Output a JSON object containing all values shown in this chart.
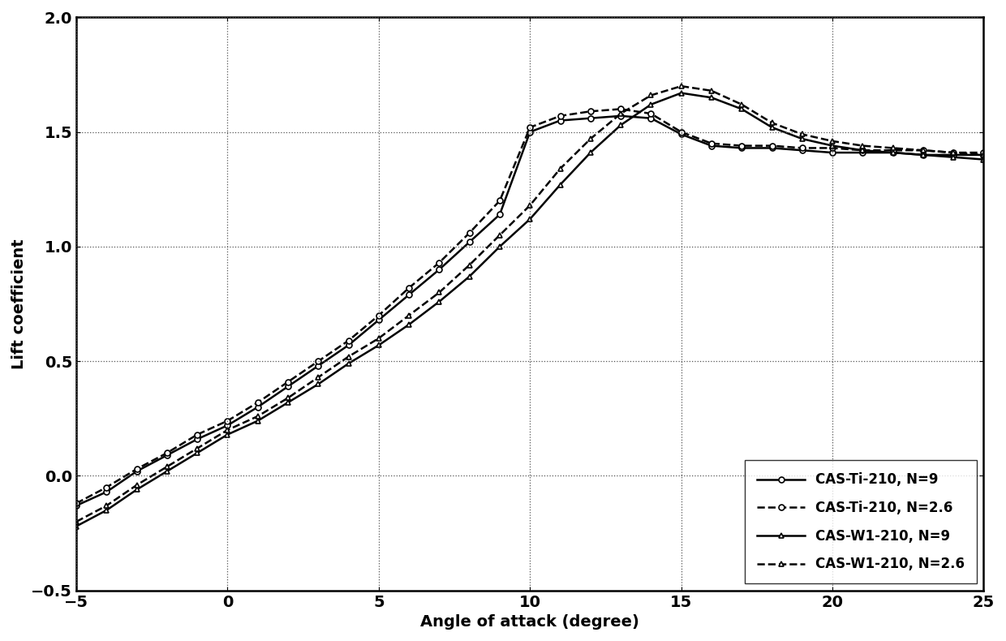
{
  "title": "",
  "xlabel": "Angle of attack (degree)",
  "ylabel": "Lift coefficient",
  "xlim": [
    -5,
    25
  ],
  "ylim": [
    -0.5,
    2.0
  ],
  "xticks": [
    -5,
    0,
    5,
    10,
    15,
    20,
    25
  ],
  "yticks": [
    -0.5,
    0.0,
    0.5,
    1.0,
    1.5,
    2.0
  ],
  "series": [
    {
      "label": "CAS-Ti-210, N=9",
      "linestyle": "-",
      "marker": "o",
      "color": "#000000",
      "x": [
        -5,
        -4,
        -3,
        -2,
        -1,
        0,
        1,
        2,
        3,
        4,
        5,
        6,
        7,
        8,
        9,
        10,
        11,
        12,
        13,
        14,
        15,
        16,
        17,
        18,
        19,
        20,
        21,
        22,
        23,
        24,
        25
      ],
      "y": [
        -0.13,
        -0.07,
        0.02,
        0.09,
        0.16,
        0.22,
        0.3,
        0.39,
        0.48,
        0.57,
        0.68,
        0.79,
        0.9,
        1.02,
        1.14,
        1.5,
        1.55,
        1.56,
        1.57,
        1.56,
        1.49,
        1.44,
        1.43,
        1.43,
        1.42,
        1.41,
        1.41,
        1.41,
        1.4,
        1.4,
        1.4
      ]
    },
    {
      "label": "CAS-Ti-210, N=2.6",
      "linestyle": "--",
      "marker": "o",
      "color": "#000000",
      "x": [
        -5,
        -4,
        -3,
        -2,
        -1,
        0,
        1,
        2,
        3,
        4,
        5,
        6,
        7,
        8,
        9,
        10,
        11,
        12,
        13,
        14,
        15,
        16,
        17,
        18,
        19,
        20,
        21,
        22,
        23,
        24,
        25
      ],
      "y": [
        -0.12,
        -0.05,
        0.03,
        0.1,
        0.18,
        0.24,
        0.32,
        0.41,
        0.5,
        0.59,
        0.7,
        0.82,
        0.93,
        1.06,
        1.2,
        1.52,
        1.57,
        1.59,
        1.6,
        1.58,
        1.5,
        1.45,
        1.44,
        1.44,
        1.43,
        1.43,
        1.42,
        1.42,
        1.42,
        1.41,
        1.41
      ]
    },
    {
      "label": "CAS-W1-210, N=9",
      "linestyle": "-",
      "marker": "^",
      "color": "#000000",
      "x": [
        -5,
        -4,
        -3,
        -2,
        -1,
        0,
        1,
        2,
        3,
        4,
        5,
        6,
        7,
        8,
        9,
        10,
        11,
        12,
        13,
        14,
        15,
        16,
        17,
        18,
        19,
        20,
        21,
        22,
        23,
        24,
        25
      ],
      "y": [
        -0.22,
        -0.15,
        -0.06,
        0.02,
        0.1,
        0.18,
        0.24,
        0.32,
        0.4,
        0.49,
        0.57,
        0.66,
        0.76,
        0.87,
        1.0,
        1.12,
        1.27,
        1.41,
        1.53,
        1.62,
        1.67,
        1.65,
        1.6,
        1.52,
        1.47,
        1.44,
        1.42,
        1.41,
        1.4,
        1.39,
        1.38
      ]
    },
    {
      "label": "CAS-W1-210, N=2.6",
      "linestyle": "--",
      "marker": "^",
      "color": "#000000",
      "x": [
        -5,
        -4,
        -3,
        -2,
        -1,
        0,
        1,
        2,
        3,
        4,
        5,
        6,
        7,
        8,
        9,
        10,
        11,
        12,
        13,
        14,
        15,
        16,
        17,
        18,
        19,
        20,
        21,
        22,
        23,
        24,
        25
      ],
      "y": [
        -0.2,
        -0.13,
        -0.04,
        0.04,
        0.12,
        0.2,
        0.26,
        0.34,
        0.43,
        0.52,
        0.6,
        0.7,
        0.8,
        0.92,
        1.05,
        1.18,
        1.34,
        1.47,
        1.58,
        1.66,
        1.7,
        1.68,
        1.62,
        1.54,
        1.49,
        1.46,
        1.44,
        1.43,
        1.42,
        1.41,
        1.4
      ]
    }
  ],
  "background_color": "#ffffff",
  "legend_loc": "lower right",
  "font_size": 14,
  "marker_size": 5,
  "linewidth": 1.8
}
